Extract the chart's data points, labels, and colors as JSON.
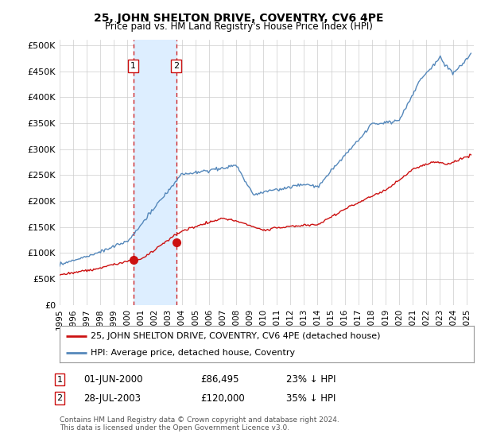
{
  "title": "25, JOHN SHELTON DRIVE, COVENTRY, CV6 4PE",
  "subtitle": "Price paid vs. HM Land Registry's House Price Index (HPI)",
  "yticks": [
    0,
    50000,
    100000,
    150000,
    200000,
    250000,
    300000,
    350000,
    400000,
    450000,
    500000
  ],
  "ytick_labels": [
    "£0",
    "£50K",
    "£100K",
    "£150K",
    "£200K",
    "£250K",
    "£300K",
    "£350K",
    "£400K",
    "£450K",
    "£500K"
  ],
  "ylim": [
    0,
    510000
  ],
  "xlim_start": 1995.0,
  "xlim_end": 2025.5,
  "hpi_color": "#5588bb",
  "price_color": "#cc1111",
  "transaction1_date": 2000.42,
  "transaction1_price": 86495,
  "transaction2_date": 2003.58,
  "transaction2_price": 120000,
  "shade_color": "#ddeeff",
  "dashed_color": "#cc1111",
  "legend_line1": "25, JOHN SHELTON DRIVE, COVENTRY, CV6 4PE (detached house)",
  "legend_line2": "HPI: Average price, detached house, Coventry",
  "footnote": "Contains HM Land Registry data © Crown copyright and database right 2024.\nThis data is licensed under the Open Government Licence v3.0.",
  "background_color": "#ffffff",
  "grid_color": "#cccccc"
}
